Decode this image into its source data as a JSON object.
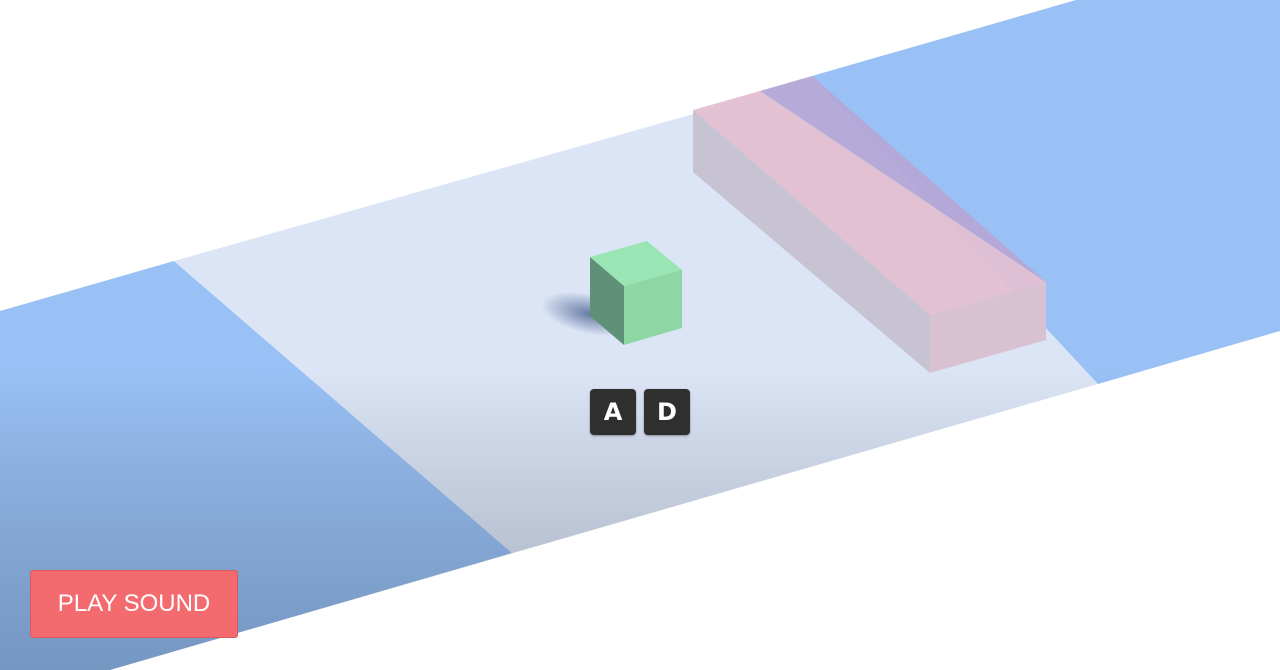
{
  "controls": {
    "keys": [
      {
        "label": "A"
      },
      {
        "label": "D"
      }
    ]
  },
  "buttons": {
    "play_sound_label": "PLAY SOUND"
  },
  "colors": {
    "water_lane": "#99c1f5",
    "water_lane_shadow": "#7a9bc6",
    "road_lane": "#dbe5f6",
    "player_cube_top": "#9ae5b4",
    "player_cube_front": "#8ed6a4",
    "player_cube_side": "#5e8f76",
    "obstacle_pink": "#e0bcd0",
    "obstacle_purple": "#b4a6d6",
    "button_bg": "#f46b6f",
    "key_bg": "#2f2f2f"
  }
}
